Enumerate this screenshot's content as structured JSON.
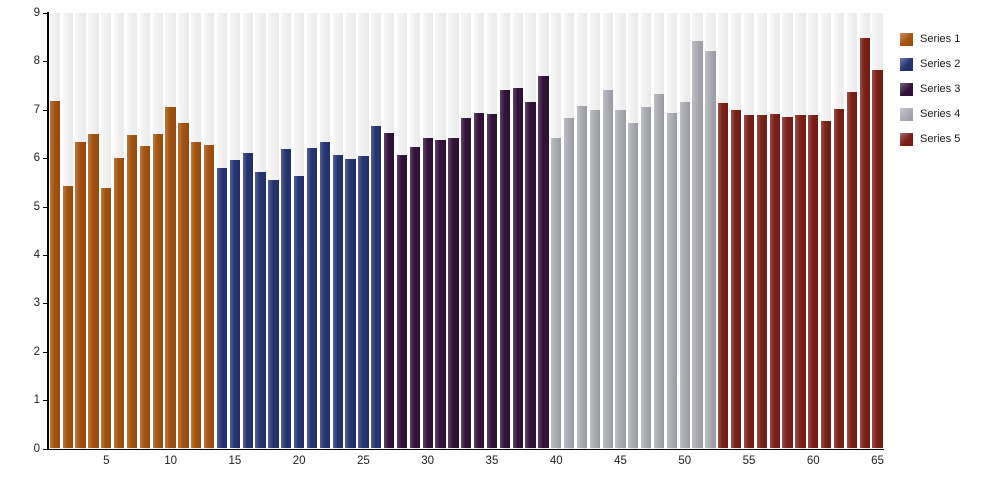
{
  "chart_data": {
    "type": "bar",
    "title": "",
    "xlabel": "",
    "ylabel": "",
    "ylim": [
      0,
      9
    ],
    "y_ticks": [
      0,
      1,
      2,
      3,
      4,
      5,
      6,
      7,
      8,
      9
    ],
    "x_ticks": [
      5,
      10,
      15,
      20,
      25,
      30,
      35,
      40,
      45,
      50,
      55,
      60,
      65
    ],
    "n_bars": 65,
    "bars_per_series": 13,
    "grid": "vertical-background-tracks",
    "legend_position": "right",
    "colors": {
      "track": "#efefef",
      "axis": "#000000",
      "label_text": "#222222",
      "background": "#ffffff"
    },
    "series": [
      {
        "name": "Series 1",
        "color": "#a4530f",
        "values": [
          7.18,
          5.42,
          6.33,
          6.49,
          5.39,
          6.01,
          6.47,
          6.26,
          6.49,
          7.05,
          6.73,
          6.33,
          6.28
        ]
      },
      {
        "name": "Series 2",
        "color": "#263572",
        "values": [
          5.8,
          5.97,
          6.1,
          5.72,
          5.55,
          6.18,
          5.64,
          6.21,
          6.33,
          6.06,
          5.98,
          6.04,
          6.66
        ]
      },
      {
        "name": "Series 3",
        "color": "#33123a",
        "values": [
          6.51,
          6.07,
          6.24,
          6.42,
          6.37,
          6.42,
          6.84,
          6.94,
          6.92,
          7.4,
          7.44,
          7.16,
          7.69
        ]
      },
      {
        "name": "Series 4",
        "color": "#ababb3",
        "values": [
          6.42,
          6.82,
          7.07,
          6.99,
          7.41,
          6.99,
          6.73,
          7.05,
          7.33,
          6.93,
          7.16,
          8.43,
          8.21
        ]
      },
      {
        "name": "Series 5",
        "color": "#7b2018",
        "values": [
          7.15,
          7.0,
          6.89,
          6.89,
          6.91,
          6.86,
          6.89,
          6.89,
          6.77,
          7.01,
          7.36,
          8.48,
          7.83
        ]
      }
    ]
  }
}
